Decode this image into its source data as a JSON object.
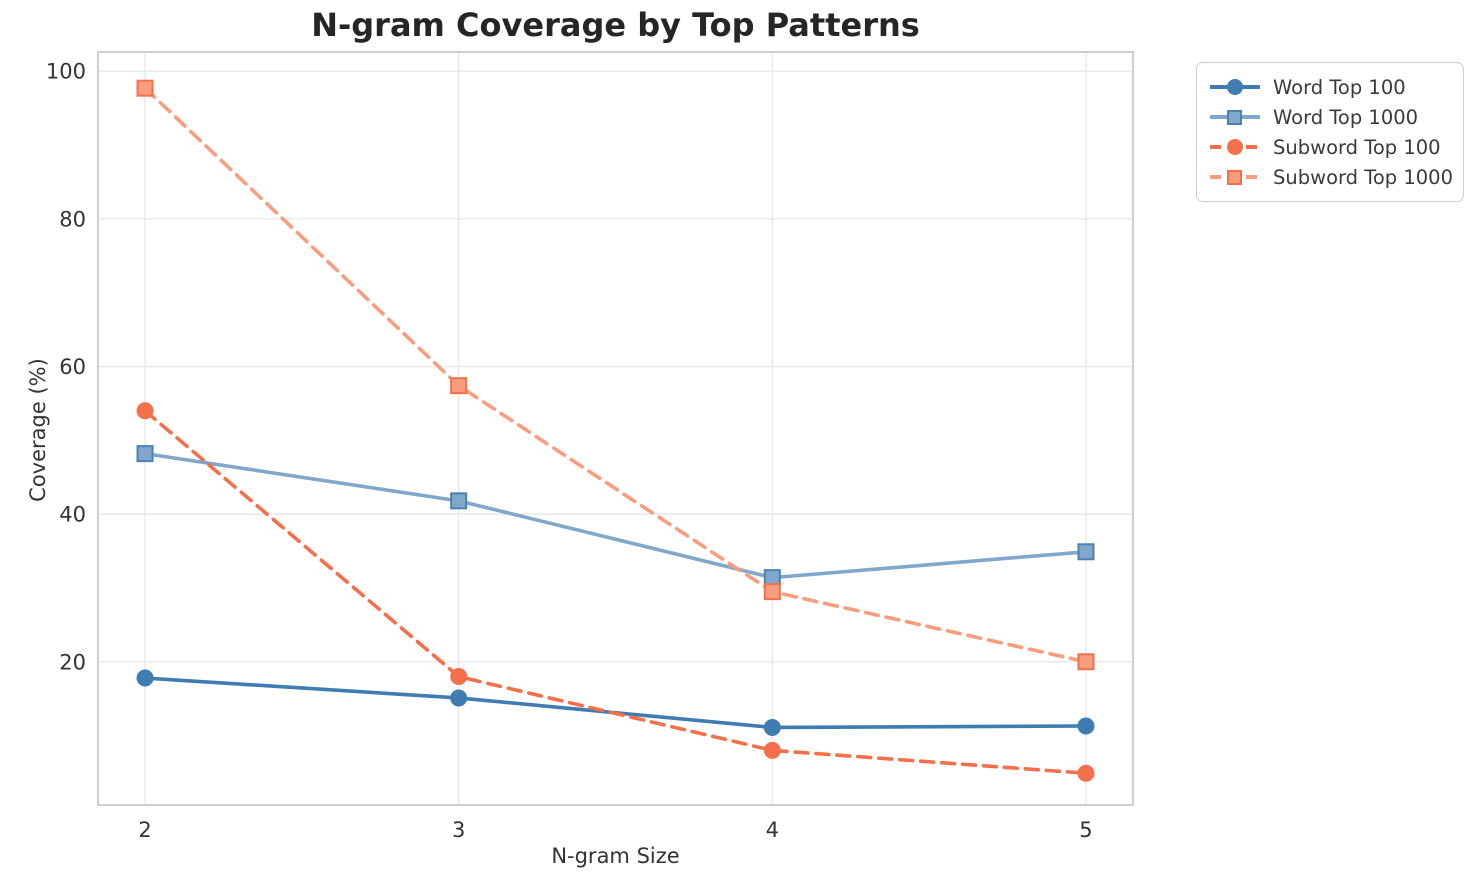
{
  "chart_data": {
    "type": "line",
    "title": "N-gram Coverage by Top Patterns",
    "xlabel": "N-gram Size",
    "ylabel": "Coverage (%)",
    "x": [
      2,
      3,
      4,
      5
    ],
    "series": [
      {
        "name": "Word Top 100",
        "values": [
          17.8,
          15.1,
          11.1,
          11.3
        ],
        "color": "#3E7CB1",
        "marker": "circle",
        "marker_edge": "#3E7CB1",
        "line": "solid"
      },
      {
        "name": "Word Top 1000",
        "values": [
          48.2,
          41.8,
          31.4,
          34.9
        ],
        "color": "#7FA8CC",
        "marker": "square",
        "marker_edge": "#4D81AF",
        "line": "solid"
      },
      {
        "name": "Subword Top 100",
        "values": [
          54.0,
          18.0,
          8.0,
          4.9
        ],
        "color": "#F4704A",
        "marker": "circle",
        "marker_edge": "#F4704A",
        "line": "dashed"
      },
      {
        "name": "Subword Top 1000",
        "values": [
          97.7,
          57.4,
          29.5,
          20.0
        ],
        "color": "#FA9D7E",
        "marker": "square",
        "marker_edge": "#F2714B",
        "line": "dashed"
      }
    ],
    "xticks": [
      2,
      3,
      4,
      5
    ],
    "yticks": [
      20,
      40,
      60,
      80,
      100
    ],
    "xtick_labels": [
      "2",
      "3",
      "4",
      "5"
    ],
    "ytick_labels": [
      "20",
      "40",
      "60",
      "80",
      "100"
    ],
    "xlim": [
      1.85,
      5.15
    ],
    "ylim": [
      0.6,
      102.6
    ],
    "grid": true,
    "legend_position": "outside-top-right"
  },
  "style": {
    "grid_color": "#e8e8e8",
    "spine_color": "#c9c9c9",
    "tick_label_color": "#333333",
    "background": "#ffffff"
  }
}
